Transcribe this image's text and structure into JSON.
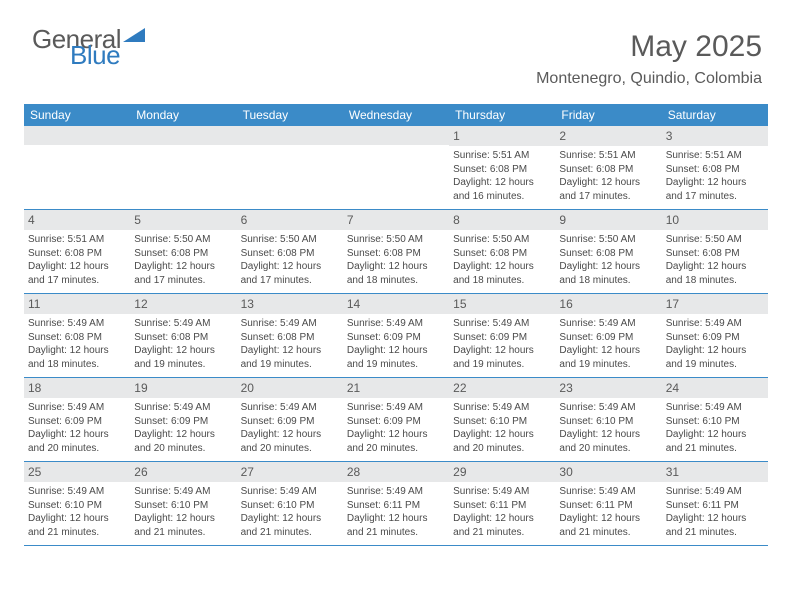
{
  "logo": {
    "word1": "General",
    "word2": "Blue"
  },
  "header": {
    "title": "May 2025",
    "location": "Montenegro, Quindio, Colombia"
  },
  "colors": {
    "header_bar": "#3b8bc8",
    "daynum_bg": "#e7e8e9",
    "text_gray": "#5a5a5a",
    "logo_blue": "#2f7bbf",
    "row_border": "#3b8bc8"
  },
  "weekdays": [
    "Sunday",
    "Monday",
    "Tuesday",
    "Wednesday",
    "Thursday",
    "Friday",
    "Saturday"
  ],
  "weeks": [
    [
      {
        "blank": true
      },
      {
        "blank": true
      },
      {
        "blank": true
      },
      {
        "blank": true
      },
      {
        "n": "1",
        "sr": "5:51 AM",
        "ss": "6:08 PM",
        "dl": "12 hours and 16 minutes."
      },
      {
        "n": "2",
        "sr": "5:51 AM",
        "ss": "6:08 PM",
        "dl": "12 hours and 17 minutes."
      },
      {
        "n": "3",
        "sr": "5:51 AM",
        "ss": "6:08 PM",
        "dl": "12 hours and 17 minutes."
      }
    ],
    [
      {
        "n": "4",
        "sr": "5:51 AM",
        "ss": "6:08 PM",
        "dl": "12 hours and 17 minutes."
      },
      {
        "n": "5",
        "sr": "5:50 AM",
        "ss": "6:08 PM",
        "dl": "12 hours and 17 minutes."
      },
      {
        "n": "6",
        "sr": "5:50 AM",
        "ss": "6:08 PM",
        "dl": "12 hours and 17 minutes."
      },
      {
        "n": "7",
        "sr": "5:50 AM",
        "ss": "6:08 PM",
        "dl": "12 hours and 18 minutes."
      },
      {
        "n": "8",
        "sr": "5:50 AM",
        "ss": "6:08 PM",
        "dl": "12 hours and 18 minutes."
      },
      {
        "n": "9",
        "sr": "5:50 AM",
        "ss": "6:08 PM",
        "dl": "12 hours and 18 minutes."
      },
      {
        "n": "10",
        "sr": "5:50 AM",
        "ss": "6:08 PM",
        "dl": "12 hours and 18 minutes."
      }
    ],
    [
      {
        "n": "11",
        "sr": "5:49 AM",
        "ss": "6:08 PM",
        "dl": "12 hours and 18 minutes."
      },
      {
        "n": "12",
        "sr": "5:49 AM",
        "ss": "6:08 PM",
        "dl": "12 hours and 19 minutes."
      },
      {
        "n": "13",
        "sr": "5:49 AM",
        "ss": "6:08 PM",
        "dl": "12 hours and 19 minutes."
      },
      {
        "n": "14",
        "sr": "5:49 AM",
        "ss": "6:09 PM",
        "dl": "12 hours and 19 minutes."
      },
      {
        "n": "15",
        "sr": "5:49 AM",
        "ss": "6:09 PM",
        "dl": "12 hours and 19 minutes."
      },
      {
        "n": "16",
        "sr": "5:49 AM",
        "ss": "6:09 PM",
        "dl": "12 hours and 19 minutes."
      },
      {
        "n": "17",
        "sr": "5:49 AM",
        "ss": "6:09 PM",
        "dl": "12 hours and 19 minutes."
      }
    ],
    [
      {
        "n": "18",
        "sr": "5:49 AM",
        "ss": "6:09 PM",
        "dl": "12 hours and 20 minutes."
      },
      {
        "n": "19",
        "sr": "5:49 AM",
        "ss": "6:09 PM",
        "dl": "12 hours and 20 minutes."
      },
      {
        "n": "20",
        "sr": "5:49 AM",
        "ss": "6:09 PM",
        "dl": "12 hours and 20 minutes."
      },
      {
        "n": "21",
        "sr": "5:49 AM",
        "ss": "6:09 PM",
        "dl": "12 hours and 20 minutes."
      },
      {
        "n": "22",
        "sr": "5:49 AM",
        "ss": "6:10 PM",
        "dl": "12 hours and 20 minutes."
      },
      {
        "n": "23",
        "sr": "5:49 AM",
        "ss": "6:10 PM",
        "dl": "12 hours and 20 minutes."
      },
      {
        "n": "24",
        "sr": "5:49 AM",
        "ss": "6:10 PM",
        "dl": "12 hours and 21 minutes."
      }
    ],
    [
      {
        "n": "25",
        "sr": "5:49 AM",
        "ss": "6:10 PM",
        "dl": "12 hours and 21 minutes."
      },
      {
        "n": "26",
        "sr": "5:49 AM",
        "ss": "6:10 PM",
        "dl": "12 hours and 21 minutes."
      },
      {
        "n": "27",
        "sr": "5:49 AM",
        "ss": "6:10 PM",
        "dl": "12 hours and 21 minutes."
      },
      {
        "n": "28",
        "sr": "5:49 AM",
        "ss": "6:11 PM",
        "dl": "12 hours and 21 minutes."
      },
      {
        "n": "29",
        "sr": "5:49 AM",
        "ss": "6:11 PM",
        "dl": "12 hours and 21 minutes."
      },
      {
        "n": "30",
        "sr": "5:49 AM",
        "ss": "6:11 PM",
        "dl": "12 hours and 21 minutes."
      },
      {
        "n": "31",
        "sr": "5:49 AM",
        "ss": "6:11 PM",
        "dl": "12 hours and 21 minutes."
      }
    ]
  ],
  "labels": {
    "sunrise": "Sunrise: ",
    "sunset": "Sunset: ",
    "daylight": "Daylight: "
  }
}
